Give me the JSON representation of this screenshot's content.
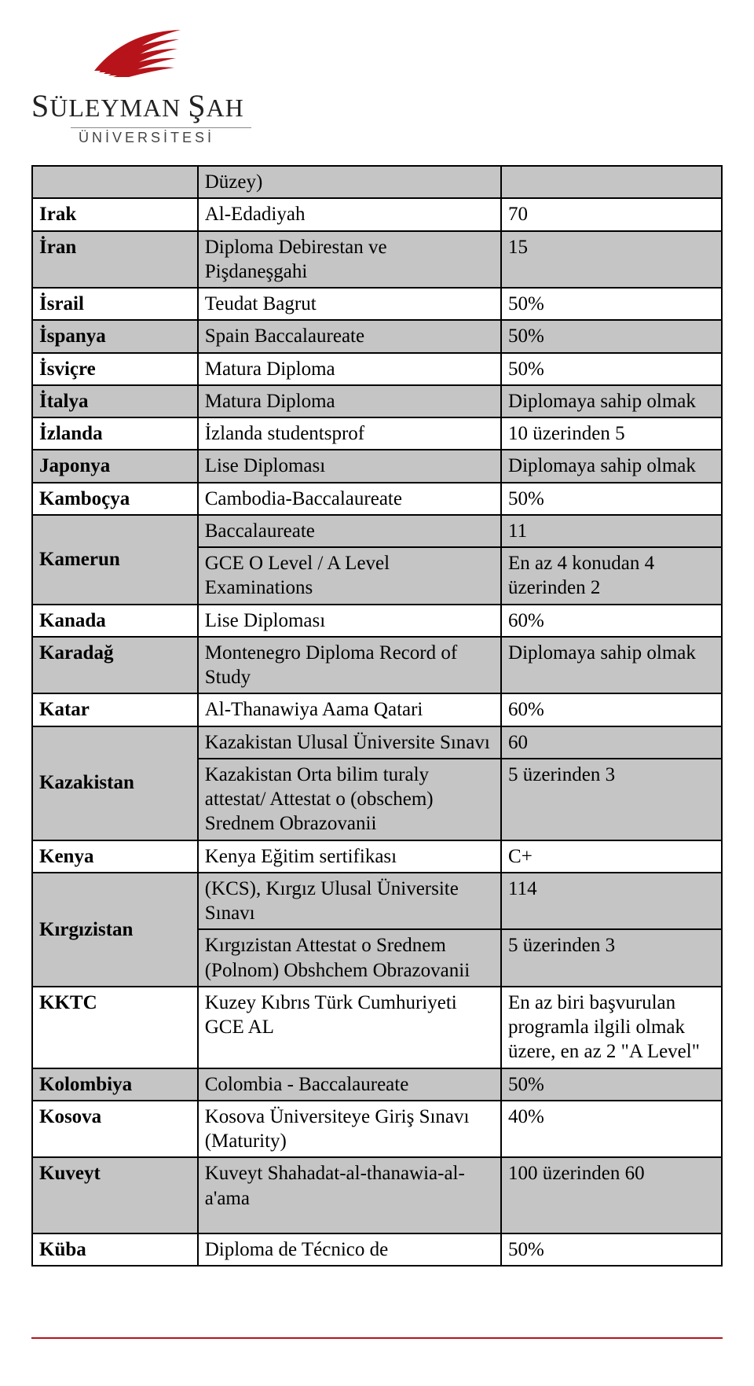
{
  "logo": {
    "name_line": "SÜLEYMAN ŞAH",
    "subtitle": "ÜNİVERSİTESİ",
    "wing_color": "#b6141a"
  },
  "colors": {
    "shade": "#c5c5c5",
    "border": "#000000",
    "footer_rule": "#b6141a",
    "text": "#000000",
    "background": "#ffffff"
  },
  "table": {
    "column_widths_pct": [
      24,
      44,
      32
    ],
    "rows": [
      {
        "shade": true,
        "country": "",
        "exam": "Düzey)",
        "req": ""
      },
      {
        "shade": false,
        "country": "Irak",
        "exam": "Al-Edadiyah",
        "req": "70"
      },
      {
        "shade": true,
        "country": "İran",
        "exam": "Diploma Debirestan ve Pişdaneşgahi",
        "req": "15"
      },
      {
        "shade": false,
        "country": "İsrail",
        "exam": "Teudat Bagrut",
        "req": "50%"
      },
      {
        "shade": true,
        "country": "İspanya",
        "exam": "Spain Baccalaureate",
        "req": "50%"
      },
      {
        "shade": false,
        "country": "İsviçre",
        "exam": "Matura Diploma",
        "req": "50%"
      },
      {
        "shade": true,
        "country": "İtalya",
        "exam": "Matura Diploma",
        "req": "Diplomaya sahip olmak"
      },
      {
        "shade": false,
        "country": "İzlanda",
        "exam": "İzlanda studentsprof",
        "req": "10 üzerinden 5"
      },
      {
        "shade": true,
        "country": "Japonya",
        "exam": "Lise Diploması",
        "req": "Diplomaya sahip olmak"
      },
      {
        "shade": false,
        "country": "Kamboçya",
        "exam": "Cambodia-Baccalaureate",
        "req": "50%"
      },
      {
        "shade": true,
        "country_rowspan": 2,
        "country": "Kamerun",
        "sub": [
          {
            "exam": "Baccalaureate",
            "req": "11"
          },
          {
            "exam": "GCE O Level / A Level Examinations",
            "req": "En az 4 konudan 4 üzerinden 2"
          }
        ]
      },
      {
        "shade": false,
        "country": "Kanada",
        "exam": "Lise Diploması",
        "req": "60%"
      },
      {
        "shade": true,
        "country": "Karadağ",
        "exam": "Montenegro Diploma Record of Study",
        "req": "Diplomaya sahip olmak"
      },
      {
        "shade": false,
        "country": "Katar",
        "exam": "Al-Thanawiya Aama Qatari",
        "req": "60%"
      },
      {
        "shade": true,
        "country_rowspan": 2,
        "country": "Kazakistan",
        "sub": [
          {
            "exam": "Kazakistan Ulusal Üniversite Sınavı",
            "req": "60"
          },
          {
            "exam": "Kazakistan Orta bilim turaly attestat/ Attestat o (obschem) Srednem Obrazovanii",
            "req": "5 üzerinden 3"
          }
        ]
      },
      {
        "shade": false,
        "country": "Kenya",
        "exam": "Kenya Eğitim sertifikası",
        "req": "C+"
      },
      {
        "shade": true,
        "country_rowspan": 2,
        "country": "Kırgızistan",
        "sub": [
          {
            "exam": "(KCS), Kırgız Ulusal Üniversite Sınavı",
            "req": "114"
          },
          {
            "exam": "Kırgızistan Attestat o Srednem (Polnom) Obshchem Obrazovanii",
            "req": "5 üzerinden 3"
          }
        ]
      },
      {
        "shade": false,
        "country": "KKTC",
        "exam": "Kuzey Kıbrıs Türk Cumhuriyeti GCE AL",
        "req": "En az biri başvurulan programla ilgili olmak üzere, en az 2 \"A Level\""
      },
      {
        "shade": true,
        "country": "Kolombiya",
        "exam": "Colombia - Baccalaureate",
        "req": "50%"
      },
      {
        "shade": false,
        "country": "Kosova",
        "exam": "Kosova Üniversiteye Giriş Sınavı (Maturity)",
        "req": "40%"
      },
      {
        "shade": true,
        "country": "Kuveyt",
        "exam": "Kuveyt Shahadat-al-thanawia-al-a'ama",
        "req": "100 üzerinden 60",
        "spacer_after": true
      },
      {
        "shade": false,
        "country": "Küba",
        "exam": "Diploma de Técnico de",
        "req": "50%"
      }
    ]
  }
}
